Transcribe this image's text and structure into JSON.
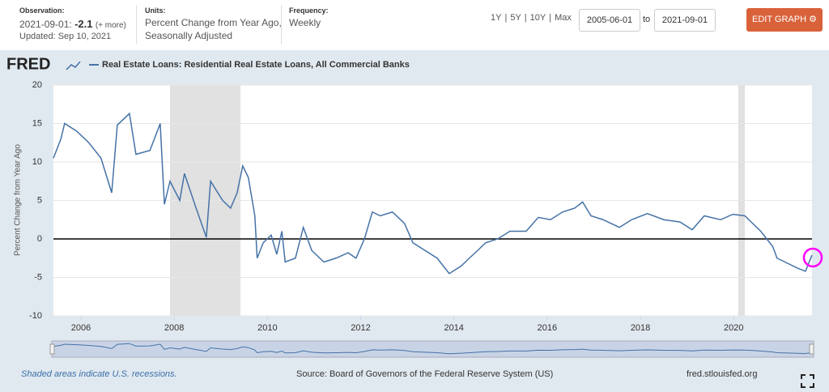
{
  "header": {
    "observation_label": "Observation:",
    "observation_date": "2021-09-01:",
    "observation_value": -2.1,
    "observation_more": "(+ more)",
    "updated": "Updated: Sep 10, 2021",
    "units_label": "Units:",
    "units_line1": "Percent Change from Year Ago,",
    "units_line2": "Seasonally Adjusted",
    "frequency_label": "Frequency:",
    "frequency": "Weekly"
  },
  "controls": {
    "range_buttons": [
      "1Y",
      "5Y",
      "10Y",
      "Max"
    ],
    "separator": "|",
    "start_date": "2005-06-01",
    "to": "to",
    "end_date": "2021-09-01",
    "edit_graph": "EDIT GRAPH"
  },
  "chart_data": {
    "type": "line",
    "logo": "FRED",
    "ylabel": "Percent Change from Year Ago",
    "xlim": [
      2005.41,
      2021.68
    ],
    "ylim": [
      -10,
      20
    ],
    "xticks": [
      2006,
      2008,
      2010,
      2012,
      2014,
      2016,
      2018,
      2020
    ],
    "yticks": [
      20,
      15,
      10,
      5,
      0,
      -5,
      -10
    ],
    "grid": true,
    "zero_line_color": "#000000",
    "recession_color": "#e1e1e1",
    "recessions": [
      [
        2007.91,
        2009.42
      ],
      [
        2020.1,
        2020.24
      ]
    ],
    "series": [
      {
        "name": "Real Estate Loans: Residential Real Estate Loans, All Commercial Banks",
        "color": "#4572a7",
        "x": [
          2005.41,
          2005.57,
          2005.65,
          2005.91,
          2006.17,
          2006.43,
          2006.66,
          2006.78,
          2007.04,
          2007.18,
          2007.48,
          2007.7,
          2007.79,
          2007.91,
          2008.12,
          2008.22,
          2008.47,
          2008.69,
          2008.78,
          2009.04,
          2009.21,
          2009.35,
          2009.47,
          2009.59,
          2009.73,
          2009.78,
          2009.91,
          2010.08,
          2010.2,
          2010.31,
          2010.38,
          2010.6,
          2010.77,
          2010.95,
          2011.21,
          2011.47,
          2011.73,
          2011.9,
          2012.08,
          2012.25,
          2012.42,
          2012.68,
          2012.94,
          2013.12,
          2013.38,
          2013.64,
          2013.9,
          2014.16,
          2014.33,
          2014.51,
          2014.68,
          2014.94,
          2015.2,
          2015.55,
          2015.81,
          2016.07,
          2016.33,
          2016.59,
          2016.76,
          2016.94,
          2017.2,
          2017.55,
          2017.81,
          2018.15,
          2018.5,
          2018.85,
          2019.11,
          2019.37,
          2019.72,
          2019.98,
          2020.24,
          2020.41,
          2020.58,
          2020.84,
          2020.93,
          2021.1,
          2021.37,
          2021.54,
          2021.68
        ],
        "values": [
          10.5,
          13,
          15,
          14,
          12.5,
          10.5,
          6,
          14.8,
          16.3,
          11,
          11.5,
          15,
          4.5,
          7.5,
          5,
          8.5,
          4,
          0.2,
          7.5,
          5,
          4,
          6,
          9.5,
          8,
          3,
          -2.5,
          -0.5,
          0.5,
          -2,
          1,
          -3,
          -2.5,
          1.5,
          -1.5,
          -3,
          -2.5,
          -1.8,
          -2.5,
          0,
          3.5,
          3,
          3.5,
          2,
          -0.5,
          -1.5,
          -2.5,
          -4.5,
          -3.5,
          -2.5,
          -1.5,
          -0.5,
          0,
          1,
          1,
          2.8,
          2.5,
          3.5,
          4,
          4.8,
          3,
          2.5,
          1.5,
          2.5,
          3.3,
          2.5,
          2.2,
          1.2,
          3,
          2.5,
          3.2,
          3,
          2,
          1,
          -1,
          -2.5,
          -3,
          -3.8,
          -4.2,
          -2.1
        ]
      }
    ]
  },
  "footer": {
    "recession_note": "Shaded areas indicate U.S. recessions.",
    "source": "Source: Board of Governors of the Federal Reserve System (US)",
    "site": "fred.stlouisfed.org"
  }
}
